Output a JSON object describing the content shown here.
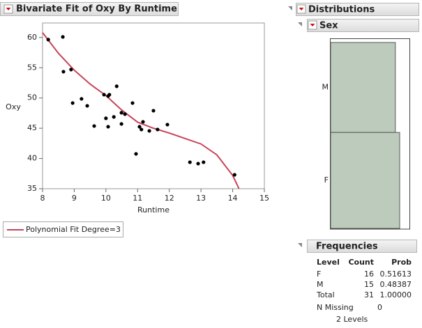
{
  "chart_data": [
    {
      "type": "scatter",
      "title": "Bivariate Fit of Oxy By Runtime",
      "x_label": "Runtime",
      "y_label": "Oxy",
      "x": [
        8.18,
        8.64,
        8.66,
        8.9,
        8.95,
        9.23,
        9.41,
        9.63,
        9.94,
        10.0,
        10.07,
        10.11,
        10.07,
        10.25,
        10.34,
        10.49,
        10.49,
        10.6,
        10.84,
        10.95,
        11.06,
        11.12,
        11.17,
        11.37,
        11.5,
        11.63,
        11.94,
        12.65,
        12.91,
        13.08,
        14.06
      ],
      "y": [
        59.65,
        60.1,
        54.35,
        54.7,
        49.17,
        49.86,
        48.71,
        45.37,
        50.55,
        46.64,
        50.32,
        50.55,
        45.25,
        46.87,
        51.94,
        47.56,
        45.71,
        47.33,
        49.17,
        40.76,
        45.25,
        44.79,
        46.06,
        44.56,
        47.9,
        44.79,
        45.6,
        39.38,
        39.15,
        39.38,
        37.3
      ],
      "color": "#000000",
      "fit": {
        "name": "Polynomial Fit Degree=3",
        "color": "#c8435a",
        "x": [
          8,
          8.5,
          9,
          9.5,
          10,
          10.5,
          11,
          11.5,
          12,
          12.5,
          13,
          13.5,
          14,
          14.2
        ],
        "y": [
          60.8,
          57.4,
          54.6,
          52.3,
          50.4,
          48.0,
          46.0,
          45.0,
          44.2,
          43.3,
          42.4,
          40.6,
          37.2,
          35.0
        ]
      },
      "xlim": [
        8,
        15
      ],
      "xticks": [
        8,
        9,
        10,
        11,
        12,
        13,
        14,
        15
      ],
      "ylim": [
        35,
        62.4
      ],
      "yticks": [
        35,
        40,
        45,
        50,
        55,
        60
      ]
    },
    {
      "type": "bar",
      "title": "Sex",
      "categories": [
        "M",
        "F"
      ],
      "values": [
        15,
        16
      ],
      "color": "#bccbbb"
    }
  ],
  "panel_title": "Distributions",
  "frequencies": {
    "title": "Frequencies",
    "columns": [
      "Level",
      "Count",
      "Prob"
    ],
    "rows": [
      [
        "F",
        16,
        0.51613
      ],
      [
        "M",
        15,
        0.48387
      ],
      [
        "Total",
        31,
        "1.00000"
      ]
    ],
    "n_missing_label": "N Missing",
    "n_missing": 0,
    "levels": "2 Levels"
  }
}
